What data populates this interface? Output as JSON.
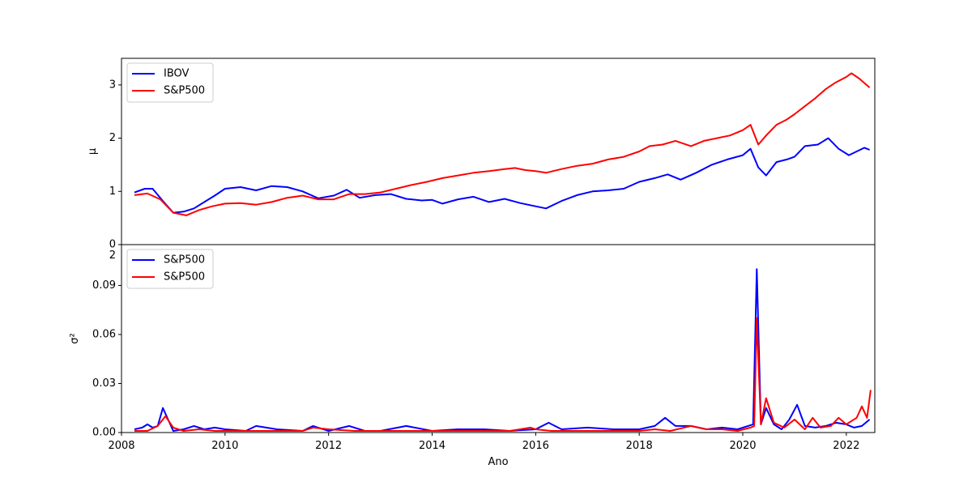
{
  "chart_data": [
    {
      "type": "line",
      "title": "",
      "ylabel": "μ",
      "xlabel": "",
      "xlim": [
        2008.0,
        2022.55
      ],
      "ylim": [
        0,
        3.5
      ],
      "yticks": [
        0,
        1,
        2,
        3
      ],
      "ytick_labels": [
        "0",
        "1",
        "2",
        "3"
      ],
      "grid": false,
      "legend": "top-left",
      "series": [
        {
          "name": "IBOV",
          "color": "#0000ff",
          "x": [
            2008.25,
            2008.45,
            2008.6,
            2008.8,
            2009.0,
            2009.2,
            2009.4,
            2009.6,
            2009.8,
            2010.0,
            2010.3,
            2010.6,
            2010.9,
            2011.2,
            2011.5,
            2011.8,
            2012.1,
            2012.35,
            2012.6,
            2012.9,
            2013.2,
            2013.5,
            2013.8,
            2014.0,
            2014.2,
            2014.5,
            2014.8,
            2015.1,
            2015.4,
            2015.7,
            2016.0,
            2016.2,
            2016.5,
            2016.8,
            2017.1,
            2017.4,
            2017.7,
            2018.0,
            2018.3,
            2018.55,
            2018.8,
            2019.1,
            2019.4,
            2019.7,
            2020.0,
            2020.15,
            2020.3,
            2020.45,
            2020.65,
            2020.85,
            2021.0,
            2021.2,
            2021.45,
            2021.65,
            2021.85,
            2022.05,
            2022.2,
            2022.35,
            2022.45
          ],
          "values": [
            0.98,
            1.05,
            1.05,
            0.82,
            0.6,
            0.62,
            0.68,
            0.8,
            0.92,
            1.05,
            1.08,
            1.02,
            1.1,
            1.08,
            1.0,
            0.87,
            0.92,
            1.03,
            0.88,
            0.93,
            0.95,
            0.86,
            0.83,
            0.84,
            0.77,
            0.85,
            0.9,
            0.8,
            0.86,
            0.78,
            0.72,
            0.68,
            0.82,
            0.93,
            1.0,
            1.02,
            1.05,
            1.18,
            1.25,
            1.32,
            1.22,
            1.35,
            1.5,
            1.6,
            1.68,
            1.8,
            1.45,
            1.3,
            1.55,
            1.6,
            1.65,
            1.85,
            1.88,
            2.0,
            1.8,
            1.68,
            1.75,
            1.82,
            1.78
          ]
        },
        {
          "name": "S&P500",
          "color": "#ff0000",
          "x": [
            2008.25,
            2008.5,
            2008.75,
            2009.0,
            2009.25,
            2009.5,
            2009.75,
            2010.0,
            2010.3,
            2010.6,
            2010.9,
            2011.2,
            2011.5,
            2011.8,
            2012.1,
            2012.4,
            2012.7,
            2013.0,
            2013.3,
            2013.6,
            2013.9,
            2014.2,
            2014.5,
            2014.8,
            2015.1,
            2015.4,
            2015.6,
            2015.8,
            2016.0,
            2016.2,
            2016.5,
            2016.8,
            2017.1,
            2017.4,
            2017.7,
            2018.0,
            2018.2,
            2018.45,
            2018.7,
            2019.0,
            2019.25,
            2019.5,
            2019.75,
            2020.0,
            2020.15,
            2020.3,
            2020.45,
            2020.65,
            2020.85,
            2021.0,
            2021.2,
            2021.4,
            2021.6,
            2021.8,
            2022.0,
            2022.1,
            2022.25,
            2022.45
          ],
          "values": [
            0.93,
            0.96,
            0.85,
            0.6,
            0.55,
            0.65,
            0.72,
            0.77,
            0.78,
            0.75,
            0.8,
            0.88,
            0.92,
            0.85,
            0.85,
            0.95,
            0.95,
            0.98,
            1.05,
            1.12,
            1.18,
            1.25,
            1.3,
            1.35,
            1.38,
            1.42,
            1.44,
            1.4,
            1.38,
            1.35,
            1.42,
            1.48,
            1.52,
            1.6,
            1.65,
            1.75,
            1.85,
            1.88,
            1.95,
            1.85,
            1.95,
            2.0,
            2.05,
            2.15,
            2.25,
            1.88,
            2.05,
            2.25,
            2.35,
            2.45,
            2.6,
            2.75,
            2.92,
            3.05,
            3.15,
            3.22,
            3.12,
            2.95
          ]
        }
      ]
    },
    {
      "type": "line",
      "title": "",
      "ylabel": "σ²",
      "xlabel": "Ano",
      "xlim": [
        2008.0,
        2022.55
      ],
      "ylim": [
        0,
        0.115
      ],
      "yticks": [
        0.0,
        0.03,
        0.06,
        0.09
      ],
      "ytick_labels": [
        "0.00",
        "0.03",
        "0.06",
        "0.09"
      ],
      "xticks": [
        2008,
        2010,
        2012,
        2014,
        2016,
        2018,
        2020,
        2022
      ],
      "xtick_labels": [
        "2008",
        "2010",
        "2012",
        "2014",
        "2016",
        "2018",
        "2020",
        "2022"
      ],
      "grid": false,
      "legend": "top-left",
      "overflow_text": "2",
      "series": [
        {
          "name": "S&P500",
          "color": "#0000ff",
          "x": [
            2008.25,
            2008.4,
            2008.5,
            2008.6,
            2008.7,
            2008.8,
            2008.9,
            2009.0,
            2009.2,
            2009.4,
            2009.6,
            2009.8,
            2010.0,
            2010.4,
            2010.6,
            2011.0,
            2011.5,
            2011.7,
            2012.0,
            2012.4,
            2012.7,
            2013.0,
            2013.5,
            2014.0,
            2014.5,
            2015.0,
            2015.5,
            2016.0,
            2016.25,
            2016.5,
            2017.0,
            2017.5,
            2018.0,
            2018.3,
            2018.5,
            2018.7,
            2019.0,
            2019.3,
            2019.6,
            2019.9,
            2020.1,
            2020.2,
            2020.27,
            2020.35,
            2020.45,
            2020.6,
            2020.75,
            2020.9,
            2021.05,
            2021.2,
            2021.4,
            2021.6,
            2021.8,
            2022.0,
            2022.15,
            2022.3,
            2022.45
          ],
          "values": [
            0.002,
            0.003,
            0.005,
            0.003,
            0.004,
            0.015,
            0.008,
            0.001,
            0.002,
            0.004,
            0.002,
            0.003,
            0.002,
            0.001,
            0.004,
            0.002,
            0.001,
            0.004,
            0.001,
            0.004,
            0.001,
            0.001,
            0.004,
            0.001,
            0.002,
            0.002,
            0.001,
            0.002,
            0.006,
            0.002,
            0.003,
            0.002,
            0.002,
            0.004,
            0.009,
            0.004,
            0.004,
            0.002,
            0.003,
            0.002,
            0.004,
            0.005,
            0.1,
            0.005,
            0.015,
            0.005,
            0.002,
            0.008,
            0.017,
            0.004,
            0.003,
            0.004,
            0.006,
            0.005,
            0.003,
            0.004,
            0.008
          ]
        },
        {
          "name": "S&P500",
          "color": "#ff0000",
          "x": [
            2008.25,
            2008.5,
            2008.7,
            2008.85,
            2009.0,
            2009.2,
            2009.5,
            2009.8,
            2010.0,
            2010.5,
            2011.0,
            2011.5,
            2011.7,
            2012.0,
            2012.5,
            2013.0,
            2013.5,
            2014.0,
            2014.5,
            2015.0,
            2015.5,
            2015.9,
            2016.0,
            2016.3,
            2016.6,
            2017.0,
            2017.5,
            2018.0,
            2018.3,
            2018.6,
            2019.0,
            2019.3,
            2019.6,
            2019.9,
            2020.15,
            2020.22,
            2020.27,
            2020.35,
            2020.45,
            2020.6,
            2020.8,
            2021.0,
            2021.2,
            2021.35,
            2021.5,
            2021.7,
            2021.85,
            2022.0,
            2022.2,
            2022.3,
            2022.4,
            2022.47
          ],
          "values": [
            0.001,
            0.001,
            0.004,
            0.01,
            0.003,
            0.001,
            0.002,
            0.001,
            0.001,
            0.001,
            0.001,
            0.001,
            0.003,
            0.002,
            0.001,
            0.001,
            0.001,
            0.001,
            0.001,
            0.001,
            0.001,
            0.003,
            0.002,
            0.001,
            0.001,
            0.001,
            0.001,
            0.001,
            0.002,
            0.001,
            0.004,
            0.002,
            0.002,
            0.001,
            0.003,
            0.004,
            0.07,
            0.005,
            0.021,
            0.006,
            0.003,
            0.008,
            0.002,
            0.009,
            0.003,
            0.004,
            0.009,
            0.005,
            0.009,
            0.016,
            0.009,
            0.026
          ]
        }
      ]
    }
  ]
}
